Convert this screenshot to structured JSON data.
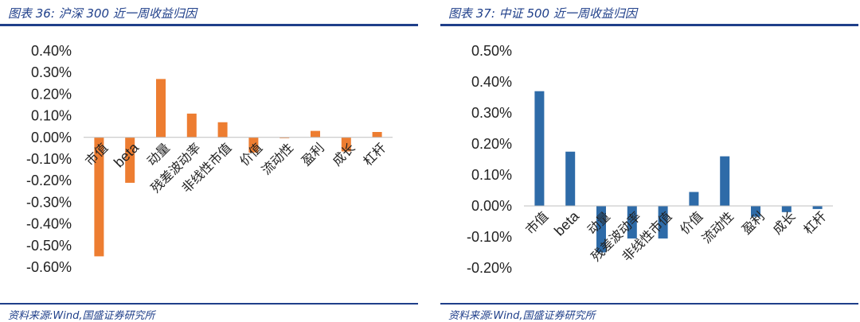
{
  "left": {
    "title": "图表 36:  沪深 300 近一周收益归因",
    "source": "资料来源:Wind,国盛证券研究所",
    "color": "#ed7d31",
    "chart_data": {
      "type": "bar",
      "categories": [
        "市值",
        "beta",
        "动量",
        "残差波动率",
        "非线性市值",
        "价值",
        "流动性",
        "盈利",
        "成长",
        "杠杆"
      ],
      "values": [
        -0.55,
        -0.21,
        0.27,
        0.11,
        0.07,
        -0.07,
        -0.003,
        0.03,
        -0.065,
        0.025
      ],
      "yticks": [
        "0.40%",
        "0.30%",
        "0.20%",
        "0.10%",
        "0.00%",
        "-0.10%",
        "-0.20%",
        "-0.30%",
        "-0.40%",
        "-0.50%",
        "-0.60%"
      ],
      "ylim": [
        -0.6,
        0.4
      ],
      "grid": false
    }
  },
  "right": {
    "title": "图表 37:  中证 500 近一周收益归因",
    "source": "资料来源:Wind,国盛证券研究所",
    "color": "#2e6ba8",
    "chart_data": {
      "type": "bar",
      "categories": [
        "市值",
        "beta",
        "动量",
        "残差波动率",
        "非线性市值",
        "价值",
        "流动性",
        "盈利",
        "成长",
        "杠杆"
      ],
      "values": [
        0.37,
        0.175,
        -0.15,
        -0.105,
        -0.105,
        0.045,
        0.16,
        -0.035,
        -0.02,
        -0.01
      ],
      "yticks": [
        "0.50%",
        "0.40%",
        "0.30%",
        "0.20%",
        "0.10%",
        "0.00%",
        "-0.10%",
        "-0.20%"
      ],
      "ylim": [
        -0.2,
        0.5
      ],
      "grid": false
    }
  }
}
